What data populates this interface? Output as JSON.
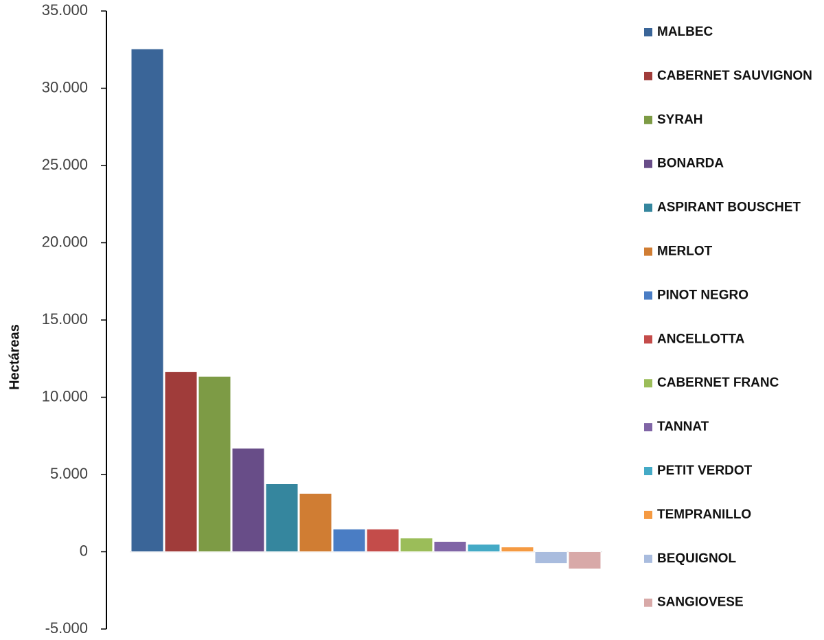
{
  "chart_data": {
    "type": "bar",
    "y_label": "Hectáreas",
    "categories": [
      "MALBEC",
      "CABERNET SAUVIGNON",
      "SYRAH",
      "BONARDA",
      "ASPIRANT BOUSCHET",
      "MERLOT",
      "PINOT NEGRO",
      "ANCELLOTTA",
      "CABERNET FRANC",
      "TANNAT",
      "PETIT VERDOT",
      "TEMPRANILLO",
      "BEQUIGNOL",
      "SANGIOVESE"
    ],
    "values": [
      32550,
      11650,
      11350,
      6700,
      4400,
      3780,
      1470,
      1470,
      890,
      670,
      490,
      310,
      -760,
      -1110
    ],
    "colors": [
      "#3a6598",
      "#a03c3a",
      "#7d9b45",
      "#684d88",
      "#35869e",
      "#d07d33",
      "#4a7dc4",
      "#c44c4a",
      "#9bbd59",
      "#8065a6",
      "#44aac6",
      "#f59a42",
      "#a9bcde",
      "#d8a9a8"
    ],
    "negative_label_color": "#ff0000",
    "ylim": [
      -5000,
      35000
    ],
    "yticks": [
      {
        "value": -5000,
        "label": "-5.000"
      },
      0,
      {
        "value": 5000,
        "label": "5.000"
      },
      {
        "value": 10000,
        "label": "10.000"
      },
      {
        "value": 15000,
        "label": "15.000"
      },
      {
        "value": 20000,
        "label": "20.000"
      },
      {
        "value": 25000,
        "label": "25.000"
      },
      {
        "value": 30000,
        "label": "30.000"
      },
      {
        "value": 35000,
        "label": "35.000"
      }
    ],
    "legend": "right"
  }
}
